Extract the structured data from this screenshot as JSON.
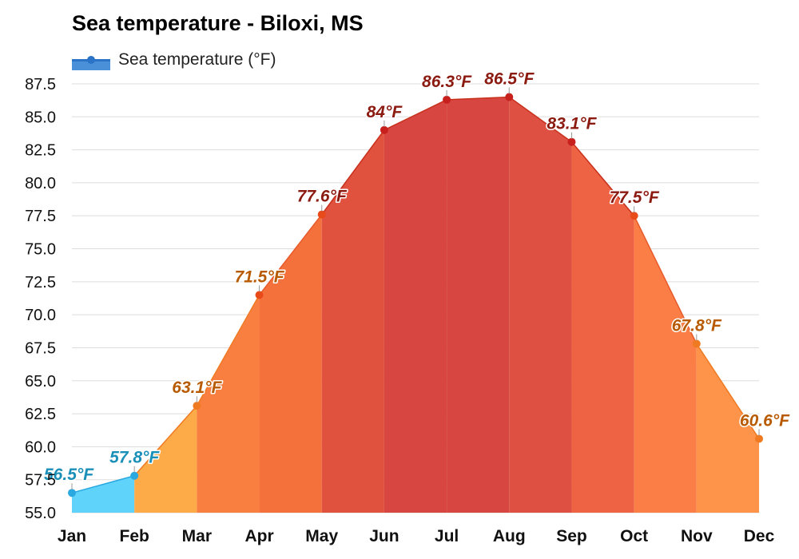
{
  "chart_data": {
    "type": "area",
    "title": "Sea temperature - Biloxi, MS",
    "legend": {
      "label": "Sea temperature (°F)",
      "placement": "top-left",
      "color": "#4a90d9"
    },
    "categories": [
      "Jan",
      "Feb",
      "Mar",
      "Apr",
      "May",
      "Jun",
      "Jul",
      "Aug",
      "Sep",
      "Oct",
      "Nov",
      "Dec"
    ],
    "series": [
      {
        "name": "Sea temperature (°F)",
        "values": [
          56.5,
          57.8,
          63.1,
          71.5,
          77.6,
          84,
          86.3,
          86.5,
          83.1,
          77.5,
          67.8,
          60.6
        ],
        "labels": [
          "56.5°F",
          "57.8°F",
          "63.1°F",
          "71.5°F",
          "77.6°F",
          "84°F",
          "86.3°F",
          "86.5°F",
          "83.1°F",
          "77.5°F",
          "67.8°F",
          "60.6°F"
        ]
      }
    ],
    "yticks": [
      "55.0",
      "57.5",
      "60.0",
      "62.5",
      "65.0",
      "67.5",
      "70.0",
      "72.5",
      "75.0",
      "77.5",
      "80.0",
      "82.5",
      "85.0",
      "87.5"
    ],
    "ylim": [
      55,
      87.5
    ],
    "grid": true,
    "colors": {
      "cold": "#5fd3fa",
      "cold_line": "#2aa8e0",
      "cold_label": "#1a8fb8",
      "warm_label": "#b85a00",
      "hot_label": "#8b1a10",
      "months": [
        "#5fd3fa",
        "#fdaa48",
        "#f97f41",
        "#f5713c",
        "#e0513e",
        "#d74640",
        "#d74640",
        "#de5042",
        "#ed6344",
        "#fb7e46",
        "#fd944a",
        "#ffa64c"
      ]
    }
  }
}
